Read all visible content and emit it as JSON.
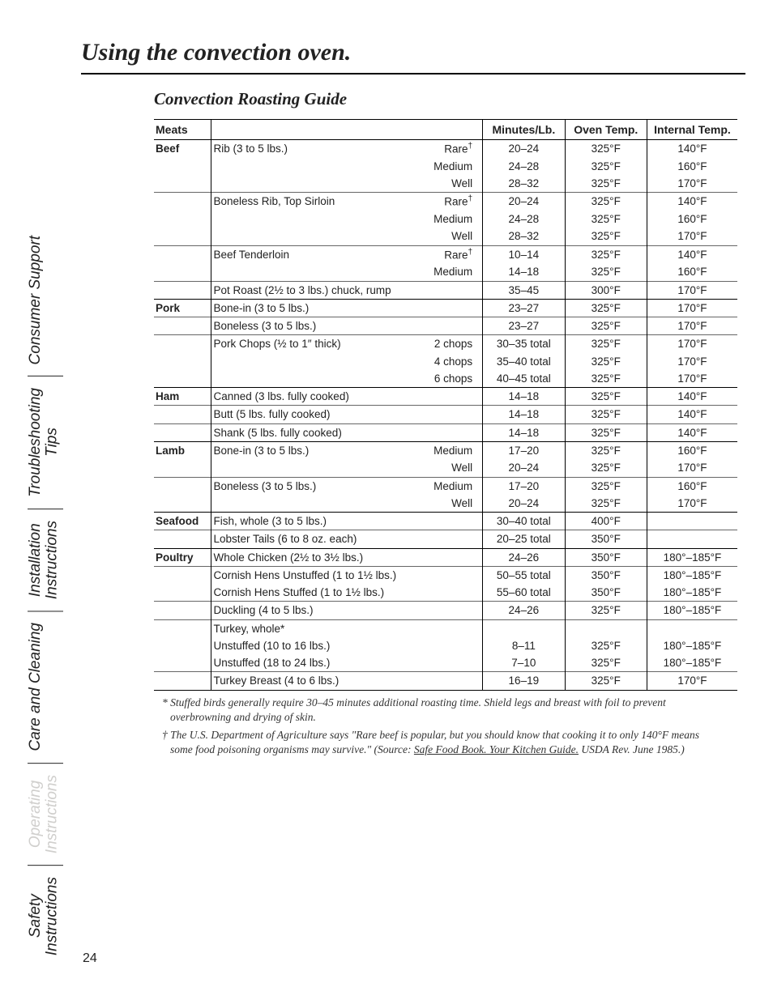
{
  "page_number": "24",
  "title": "Using the convection oven.",
  "subtitle": "Convection Roasting Guide",
  "sidebar_tabs": [
    "Safety Instructions",
    "Operating Instructions",
    "Care and Cleaning",
    "Installation Instructions",
    "Troubleshooting Tips",
    "Consumer Support"
  ],
  "active_tab_index": 1,
  "headers": {
    "meats": "Meats",
    "minutes": "Minutes/Lb.",
    "oven": "Oven Temp.",
    "internal": "Internal Temp."
  },
  "rows": [
    {
      "sep": "outer",
      "cat": "Beef",
      "cut": "Rib (3 to 5 lbs.)",
      "done": "Rare†",
      "min": "20–24",
      "oven": "325°F",
      "int": "140°F"
    },
    {
      "sep": "",
      "cat": "",
      "cut": "",
      "done": "Medium",
      "min": "24–28",
      "oven": "325°F",
      "int": "160°F"
    },
    {
      "sep": "",
      "cat": "",
      "cut": "",
      "done": "Well",
      "min": "28–32",
      "oven": "325°F",
      "int": "170°F"
    },
    {
      "sep": "inner",
      "cat": "",
      "cut": "Boneless Rib, Top Sirloin",
      "done": "Rare†",
      "min": "20–24",
      "oven": "325°F",
      "int": "140°F"
    },
    {
      "sep": "",
      "cat": "",
      "cut": "",
      "done": "Medium",
      "min": "24–28",
      "oven": "325°F",
      "int": "160°F"
    },
    {
      "sep": "",
      "cat": "",
      "cut": "",
      "done": "Well",
      "min": "28–32",
      "oven": "325°F",
      "int": "170°F"
    },
    {
      "sep": "inner",
      "cat": "",
      "cut": "Beef Tenderloin",
      "done": "Rare†",
      "min": "10–14",
      "oven": "325°F",
      "int": "140°F"
    },
    {
      "sep": "",
      "cat": "",
      "cut": "",
      "done": "Medium",
      "min": "14–18",
      "oven": "325°F",
      "int": "160°F"
    },
    {
      "sep": "inner",
      "cat": "",
      "cut": "Pot Roast (2½ to 3 lbs.) chuck, rump",
      "done": "",
      "min": "35–45",
      "oven": "300°F",
      "int": "170°F"
    },
    {
      "sep": "outer",
      "cat": "Pork",
      "cut": "Bone-in (3 to 5 lbs.)",
      "done": "",
      "min": "23–27",
      "oven": "325°F",
      "int": "170°F"
    },
    {
      "sep": "inner",
      "cat": "",
      "cut": "Boneless (3 to 5 lbs.)",
      "done": "",
      "min": "23–27",
      "oven": "325°F",
      "int": "170°F"
    },
    {
      "sep": "inner",
      "cat": "",
      "cut": "Pork Chops (½ to 1″ thick)",
      "done": "2 chops",
      "min": "30–35 total",
      "oven": "325°F",
      "int": "170°F"
    },
    {
      "sep": "",
      "cat": "",
      "cut": "",
      "done": "4 chops",
      "min": "35–40 total",
      "oven": "325°F",
      "int": "170°F"
    },
    {
      "sep": "",
      "cat": "",
      "cut": "",
      "done": "6 chops",
      "min": "40–45 total",
      "oven": "325°F",
      "int": "170°F"
    },
    {
      "sep": "outer",
      "cat": "Ham",
      "cut": "Canned (3 lbs. fully cooked)",
      "done": "",
      "min": "14–18",
      "oven": "325°F",
      "int": "140°F"
    },
    {
      "sep": "inner",
      "cat": "",
      "cut": "Butt (5 lbs. fully cooked)",
      "done": "",
      "min": "14–18",
      "oven": "325°F",
      "int": "140°F"
    },
    {
      "sep": "inner",
      "cat": "",
      "cut": "Shank (5 lbs. fully cooked)",
      "done": "",
      "min": "14–18",
      "oven": "325°F",
      "int": "140°F"
    },
    {
      "sep": "outer",
      "cat": "Lamb",
      "cut": "Bone-in (3 to 5 lbs.)",
      "done": "Medium",
      "min": "17–20",
      "oven": "325°F",
      "int": "160°F"
    },
    {
      "sep": "",
      "cat": "",
      "cut": "",
      "done": "Well",
      "min": "20–24",
      "oven": "325°F",
      "int": "170°F"
    },
    {
      "sep": "inner",
      "cat": "",
      "cut": "Boneless (3 to 5 lbs.)",
      "done": "Medium",
      "min": "17–20",
      "oven": "325°F",
      "int": "160°F"
    },
    {
      "sep": "",
      "cat": "",
      "cut": "",
      "done": "Well",
      "min": "20–24",
      "oven": "325°F",
      "int": "170°F"
    },
    {
      "sep": "outer",
      "cat": "Seafood",
      "cut": "Fish, whole (3 to 5 lbs.)",
      "done": "",
      "min": "30–40 total",
      "oven": "400°F",
      "int": ""
    },
    {
      "sep": "inner",
      "cat": "",
      "cut": "Lobster Tails (6 to 8 oz. each)",
      "done": "",
      "min": "20–25 total",
      "oven": "350°F",
      "int": ""
    },
    {
      "sep": "outer",
      "cat": "Poultry",
      "cut": "Whole Chicken (2½ to 3½ lbs.)",
      "done": "",
      "min": "24–26",
      "oven": "350°F",
      "int": "180°–185°F"
    },
    {
      "sep": "inner",
      "cat": "",
      "cut": "Cornish Hens Unstuffed (1 to 1½ lbs.)",
      "done": "",
      "min": "50–55 total",
      "oven": "350°F",
      "int": "180°–185°F"
    },
    {
      "sep": "",
      "cat": "",
      "cut": "Cornish Hens Stuffed (1 to 1½ lbs.)",
      "done": "",
      "min": "55–60 total",
      "oven": "350°F",
      "int": "180°–185°F"
    },
    {
      "sep": "inner",
      "cat": "",
      "cut": "Duckling (4 to 5 lbs.)",
      "done": "",
      "min": "24–26",
      "oven": "325°F",
      "int": "180°–185°F"
    },
    {
      "sep": "inner",
      "cat": "",
      "cut": "Turkey, whole*",
      "done": "",
      "min": "",
      "oven": "",
      "int": ""
    },
    {
      "sep": "",
      "cat": "",
      "cut": "Unstuffed (10 to 16 lbs.)",
      "done": "",
      "min": "8–11",
      "oven": "325°F",
      "int": "180°–185°F"
    },
    {
      "sep": "",
      "cat": "",
      "cut": "Unstuffed (18 to 24 lbs.)",
      "done": "",
      "min": "7–10",
      "oven": "325°F",
      "int": "180°–185°F"
    },
    {
      "sep": "inner",
      "cat": "",
      "cut": "Turkey Breast (4 to 6 lbs.)",
      "done": "",
      "min": "16–19",
      "oven": "325°F",
      "int": "170°F",
      "last": true
    }
  ],
  "footnote1_pre": "* Stuffed birds generally require 30–45 minutes additional roasting time. Shield legs and breast with foil to prevent overbrowning and drying of skin.",
  "footnote2_pre": "† The U.S. Department of Agriculture says \"Rare beef is popular, but you should know that cooking it to only 140°F means some food poisoning organisms may survive.\" (Source: ",
  "footnote2_link": "Safe Food Book. Your Kitchen Guide.",
  "footnote2_post": " USDA Rev. June 1985.)"
}
